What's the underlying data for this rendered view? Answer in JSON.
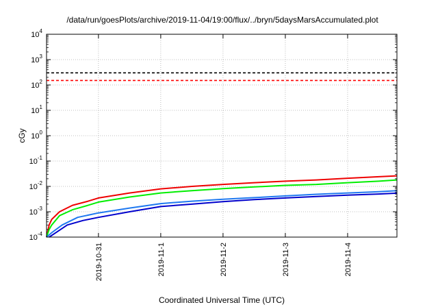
{
  "chart_data": {
    "type": "line",
    "title": "/data/run/goesPlots/archive/2019-11-04/19:00/flux/../bryn/5daysMarsAccumulated.plot",
    "xlabel": "Coordinated Universal Time (UTC)",
    "ylabel": "cGy",
    "y_scale": "log",
    "ylim": [
      0.0001,
      10000
    ],
    "xlim": [
      "2019-10-30T04:00",
      "2019-11-04T19:00"
    ],
    "grid": true,
    "x_ticks": [
      "2019-10-31",
      "2019-11-1",
      "2019-11-2",
      "2019-11-3",
      "2019-11-4"
    ],
    "y_ticks": [
      {
        "base": "10",
        "exp": "-4",
        "value": 0.0001
      },
      {
        "base": "10",
        "exp": "-3",
        "value": 0.001
      },
      {
        "base": "10",
        "exp": "-2",
        "value": 0.01
      },
      {
        "base": "10",
        "exp": "-1",
        "value": 0.1
      },
      {
        "base": "10",
        "exp": "0",
        "value": 1
      },
      {
        "base": "10",
        "exp": "1",
        "value": 10
      },
      {
        "base": "10",
        "exp": "2",
        "value": 100
      },
      {
        "base": "10",
        "exp": "3",
        "value": 1000
      },
      {
        "base": "10",
        "exp": "4",
        "value": 10000
      }
    ],
    "reference_lines": [
      {
        "y": 300,
        "color": "#000000",
        "style": "dashed"
      },
      {
        "y": 150,
        "color": "#ff0000",
        "style": "dashed"
      }
    ],
    "series": [
      {
        "color": "#ee0000",
        "x": [
          "2019-10-30T04:00",
          "2019-10-30T05:00",
          "2019-10-30T06:00",
          "2019-10-30T09:00",
          "2019-10-30T14:00",
          "2019-10-30T20:00",
          "2019-10-31T00:00",
          "2019-10-31T12:00",
          "2019-11-01T00:00",
          "2019-11-01T12:00",
          "2019-11-02T00:00",
          "2019-11-02T12:00",
          "2019-11-03T00:00",
          "2019-11-03T12:00",
          "2019-11-04T00:00",
          "2019-11-04T12:00",
          "2019-11-04T19:00"
        ],
        "y": [
          0.0001,
          0.0003,
          0.0005,
          0.001,
          0.0018,
          0.0026,
          0.0035,
          0.0055,
          0.008,
          0.01,
          0.012,
          0.014,
          0.016,
          0.018,
          0.021,
          0.024,
          0.026
        ]
      },
      {
        "color": "#00ee00",
        "x": [
          "2019-10-30T04:00",
          "2019-10-30T05:00",
          "2019-10-30T06:00",
          "2019-10-30T09:00",
          "2019-10-30T14:00",
          "2019-10-30T20:00",
          "2019-10-31T00:00",
          "2019-10-31T12:00",
          "2019-11-01T00:00",
          "2019-11-01T12:00",
          "2019-11-02T00:00",
          "2019-11-02T12:00",
          "2019-11-03T00:00",
          "2019-11-03T12:00",
          "2019-11-04T00:00",
          "2019-11-04T12:00",
          "2019-11-04T19:00"
        ],
        "y": [
          0.0001,
          0.0002,
          0.0003,
          0.0007,
          0.0012,
          0.0018,
          0.0024,
          0.0038,
          0.0055,
          0.0068,
          0.0082,
          0.0095,
          0.011,
          0.012,
          0.014,
          0.016,
          0.018
        ]
      },
      {
        "color": "#1e78f0",
        "x": [
          "2019-10-30T04:00",
          "2019-10-30T06:00",
          "2019-10-30T10:00",
          "2019-10-30T16:00",
          "2019-10-31T00:00",
          "2019-10-31T12:00",
          "2019-11-01T00:00",
          "2019-11-01T12:00",
          "2019-11-02T00:00",
          "2019-11-02T12:00",
          "2019-11-03T00:00",
          "2019-11-03T12:00",
          "2019-11-04T00:00",
          "2019-11-04T12:00",
          "2019-11-04T19:00"
        ],
        "y": [
          0.0001,
          0.00015,
          0.0003,
          0.0006,
          0.0009,
          0.0014,
          0.0021,
          0.0026,
          0.0031,
          0.0036,
          0.0042,
          0.0049,
          0.0055,
          0.0062,
          0.0068
        ]
      },
      {
        "color": "#0000cc",
        "x": [
          "2019-10-30T05:00",
          "2019-10-30T08:00",
          "2019-10-30T12:00",
          "2019-10-30T18:00",
          "2019-10-31T00:00",
          "2019-10-31T12:00",
          "2019-11-01T00:00",
          "2019-11-01T12:00",
          "2019-11-02T00:00",
          "2019-11-02T12:00",
          "2019-11-03T00:00",
          "2019-11-03T12:00",
          "2019-11-04T00:00",
          "2019-11-04T12:00",
          "2019-11-04T19:00"
        ],
        "y": [
          0.0001,
          0.00016,
          0.0003,
          0.00045,
          0.0006,
          0.001,
          0.0016,
          0.002,
          0.0025,
          0.003,
          0.0035,
          0.004,
          0.0045,
          0.005,
          0.0054
        ]
      }
    ]
  }
}
